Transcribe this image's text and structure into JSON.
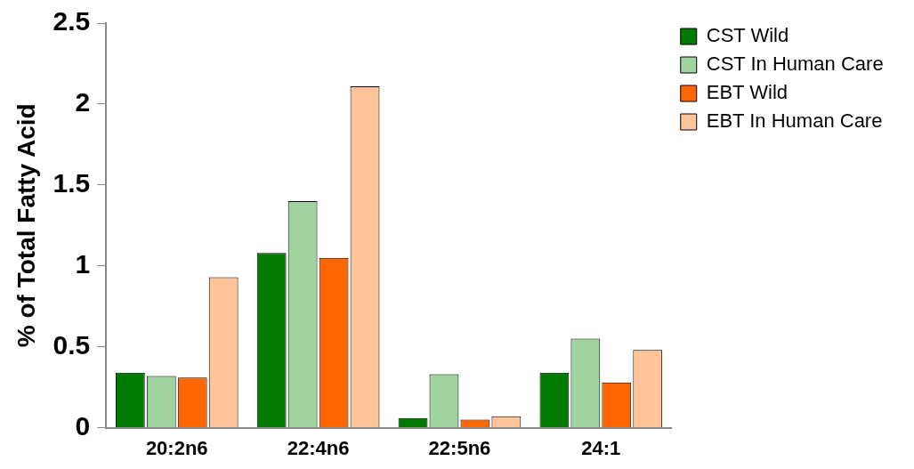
{
  "chart_data": {
    "type": "bar",
    "ylabel": "% of Total Fatty Acid",
    "categories": [
      "20:2n6",
      "22:4n6",
      "22:5n6",
      "24:1"
    ],
    "series": [
      {
        "name": "CST Wild",
        "color": "#007a00",
        "values": [
          0.34,
          1.08,
          0.06,
          0.34
        ]
      },
      {
        "name": "CST In Human Care",
        "color": "#9fd49f",
        "values": [
          0.32,
          1.4,
          0.33,
          0.55
        ]
      },
      {
        "name": "EBT Wild",
        "color": "#ff6600",
        "values": [
          0.31,
          1.05,
          0.05,
          0.28
        ]
      },
      {
        "name": "EBT In Human Care",
        "color": "#ffc499",
        "values": [
          0.93,
          2.11,
          0.07,
          0.48
        ]
      }
    ],
    "ylim": [
      0,
      2.5
    ],
    "yticks": [
      0,
      0.5,
      1,
      1.5,
      2,
      2.5
    ],
    "grid": false,
    "legend": "top right"
  }
}
